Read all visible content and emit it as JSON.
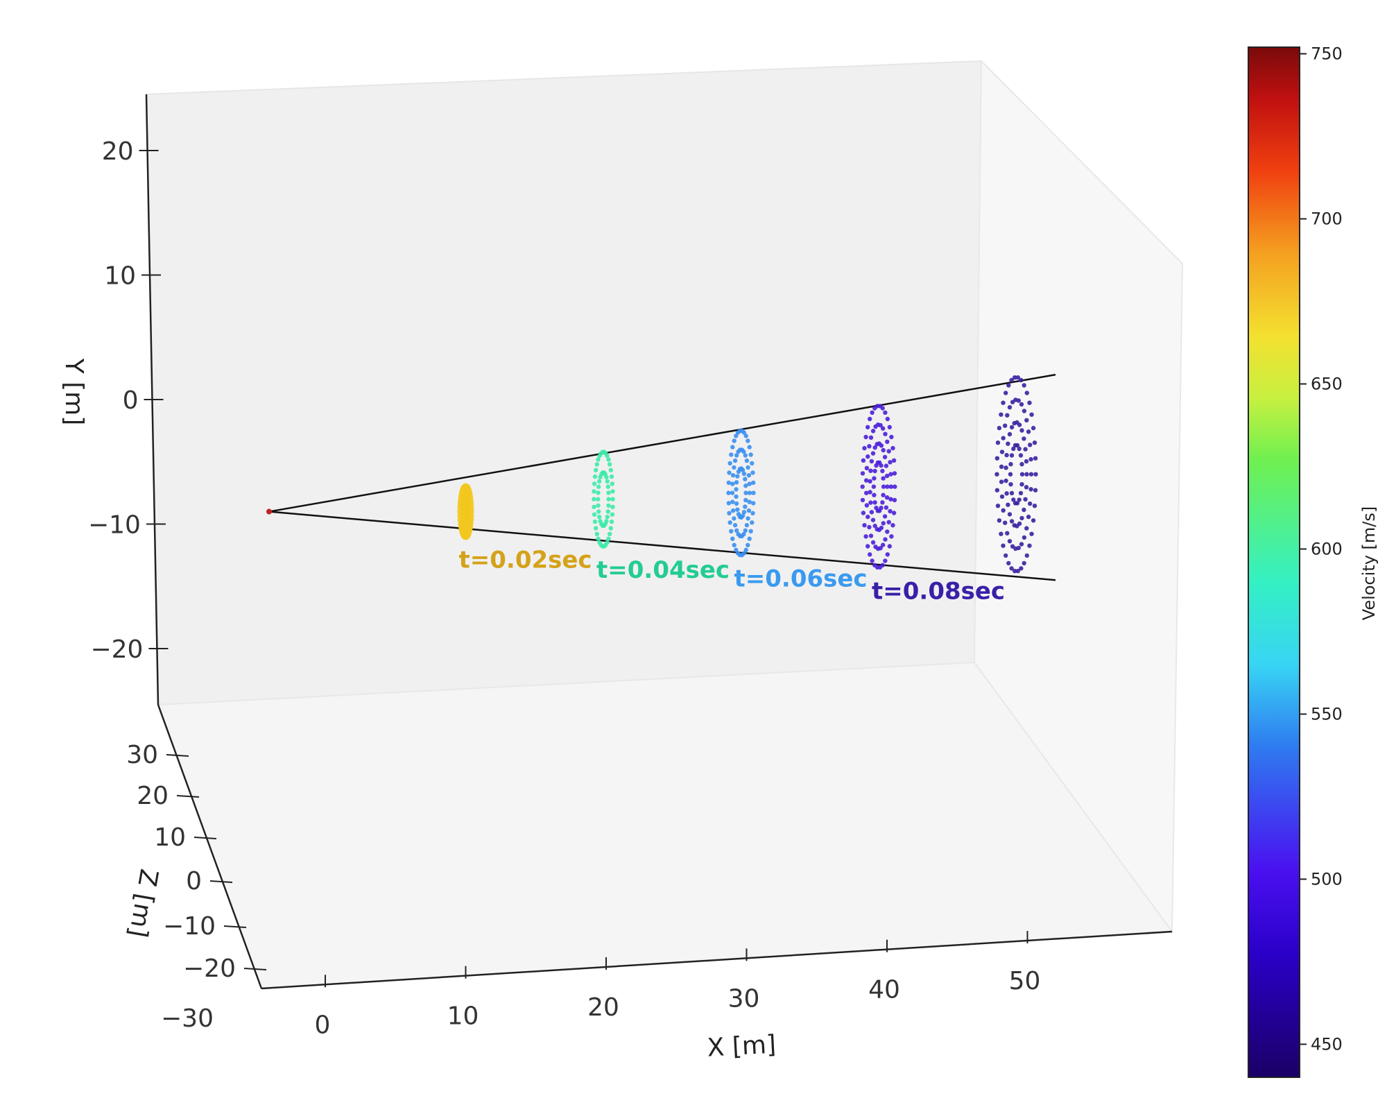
{
  "chart_data": {
    "type": "scatter",
    "projection": "3d",
    "axes": {
      "x": {
        "label": "X [m]",
        "ticks": [
          "0",
          "10",
          "20",
          "30",
          "40",
          "50"
        ],
        "range": [
          -8,
          60
        ]
      },
      "y": {
        "label": "Y [m]",
        "ticks": [
          "20",
          "10",
          "0",
          "−10",
          "−20"
        ],
        "range": [
          -25,
          25
        ]
      },
      "z": {
        "label": "Z [m]",
        "ticks": [
          "30",
          "20",
          "10",
          "0",
          "−10",
          "−20",
          "−30"
        ],
        "range": [
          -30,
          35
        ]
      }
    },
    "grid": false,
    "origin": {
      "x": -4,
      "y": -9,
      "z": 0
    },
    "cone_edges": {
      "upper": {
        "from": [
          -4,
          -9
        ],
        "to": [
          52,
          2
        ]
      },
      "lower": {
        "from": [
          -4,
          -9
        ],
        "to": [
          52,
          -14.5
        ]
      }
    },
    "series": [
      {
        "name": "t=0.02sec",
        "x": 10,
        "y_center": -9,
        "y_half_height": 2,
        "rings": 1,
        "velocity": 650,
        "color": "#f2c81e",
        "label_color": "#d4a21a"
      },
      {
        "name": "t=0.04sec",
        "x": 20,
        "y_center": -8,
        "y_half_height": 3.8,
        "rings": 2,
        "velocity": 565,
        "color": "#3deaa8",
        "label_color": "#22cc92"
      },
      {
        "name": "t=0.06sec",
        "x": 30,
        "y_center": -7.5,
        "y_half_height": 5,
        "rings": 3,
        "velocity": 525,
        "color": "#3a8ff0",
        "label_color": "#3a9af0"
      },
      {
        "name": "t=0.08sec",
        "x": 40,
        "y_center": -7,
        "y_half_height": 6.5,
        "rings": 4,
        "velocity": 492,
        "color": "#4b1fd8",
        "label_color": "#3a1fa8"
      },
      {
        "name": "",
        "x": 50,
        "y_center": -6,
        "y_half_height": 7.8,
        "rings": 4,
        "velocity": 470,
        "color": "#3a20a0",
        "label_color": ""
      }
    ],
    "colorbar": {
      "label": "Velocity [m/s]",
      "min": 440,
      "max": 752,
      "ticks": [
        "750",
        "700",
        "650",
        "600",
        "550",
        "500",
        "450"
      ],
      "colormap": "jet"
    }
  }
}
